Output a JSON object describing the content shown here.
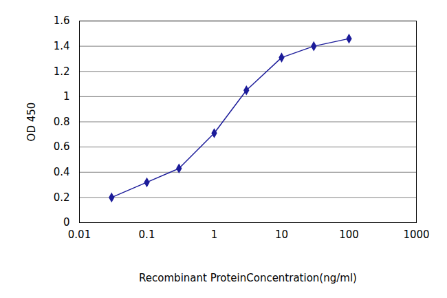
{
  "chart_data": {
    "type": "line",
    "x_label": "Recombinant ProteinConcentration(ng/ml)",
    "y_label": "OD 450",
    "x": [
      0.03,
      0.1,
      0.3,
      1,
      3,
      10,
      30,
      100
    ],
    "values": [
      0.2,
      0.32,
      0.43,
      0.71,
      1.05,
      1.31,
      1.4,
      1.46
    ],
    "color": "#1c1c9a",
    "marker": "diamond",
    "log": "x",
    "grid": true,
    "xlim": [
      0.01,
      1000
    ],
    "xticks": [
      0.01,
      0.1,
      1,
      10,
      100,
      1000
    ],
    "ylim": [
      0,
      1.6
    ],
    "yticks": [
      0,
      0.2,
      0.4,
      0.6,
      0.8,
      1,
      1.2,
      1.4,
      1.6
    ]
  }
}
